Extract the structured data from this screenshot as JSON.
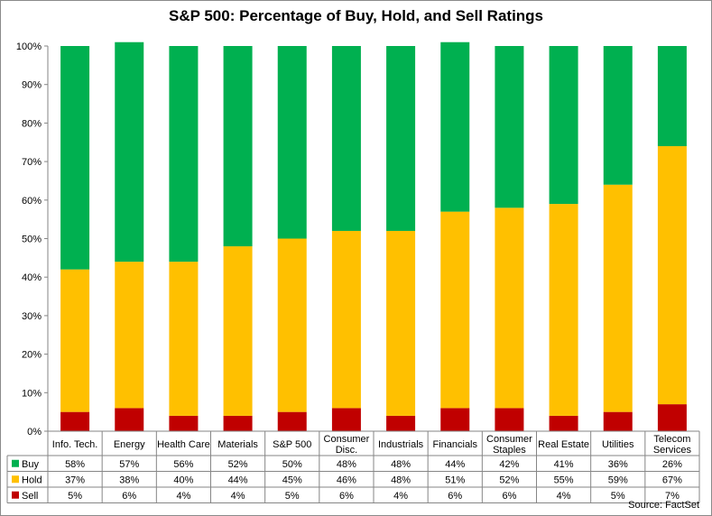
{
  "chart_data": {
    "type": "bar",
    "stacked": true,
    "title": "S&P 500: Percentage of Buy, Hold, and Sell Ratings",
    "categories": [
      [
        "Info. Tech."
      ],
      [
        "Energy"
      ],
      [
        "Health Care"
      ],
      [
        "Materials"
      ],
      [
        "S&P 500"
      ],
      [
        "Consumer",
        "Disc."
      ],
      [
        "Industrials"
      ],
      [
        "Financials"
      ],
      [
        "Consumer",
        "Staples"
      ],
      [
        "Real Estate"
      ],
      [
        "Utilities"
      ],
      [
        "Telecom",
        "Services"
      ]
    ],
    "series": [
      {
        "name": "Buy",
        "color": "#00b050",
        "values": [
          58,
          57,
          56,
          52,
          50,
          48,
          48,
          44,
          42,
          41,
          36,
          26
        ],
        "labels": [
          "58%",
          "57%",
          "56%",
          "52%",
          "50%",
          "48%",
          "48%",
          "44%",
          "42%",
          "41%",
          "36%",
          "26%"
        ]
      },
      {
        "name": "Hold",
        "color": "#ffc000",
        "values": [
          37,
          38,
          40,
          44,
          45,
          46,
          48,
          51,
          52,
          55,
          59,
          67
        ],
        "labels": [
          "37%",
          "38%",
          "40%",
          "44%",
          "45%",
          "46%",
          "48%",
          "51%",
          "52%",
          "55%",
          "59%",
          "67%"
        ]
      },
      {
        "name": "Sell",
        "color": "#c00000",
        "values": [
          5,
          6,
          4,
          4,
          5,
          6,
          4,
          6,
          6,
          4,
          5,
          7
        ],
        "labels": [
          "5%",
          "6%",
          "4%",
          "4%",
          "5%",
          "6%",
          "4%",
          "6%",
          "6%",
          "4%",
          "5%",
          "7%"
        ]
      }
    ],
    "stack_order_bottom_up": [
      "Sell",
      "Hold",
      "Buy"
    ],
    "ylim": [
      0,
      100
    ],
    "yticks": [
      "0%",
      "10%",
      "20%",
      "30%",
      "40%",
      "50%",
      "60%",
      "70%",
      "80%",
      "90%",
      "100%"
    ],
    "legend": "data-table-left",
    "grid": false
  },
  "source": "Source: FactSet"
}
